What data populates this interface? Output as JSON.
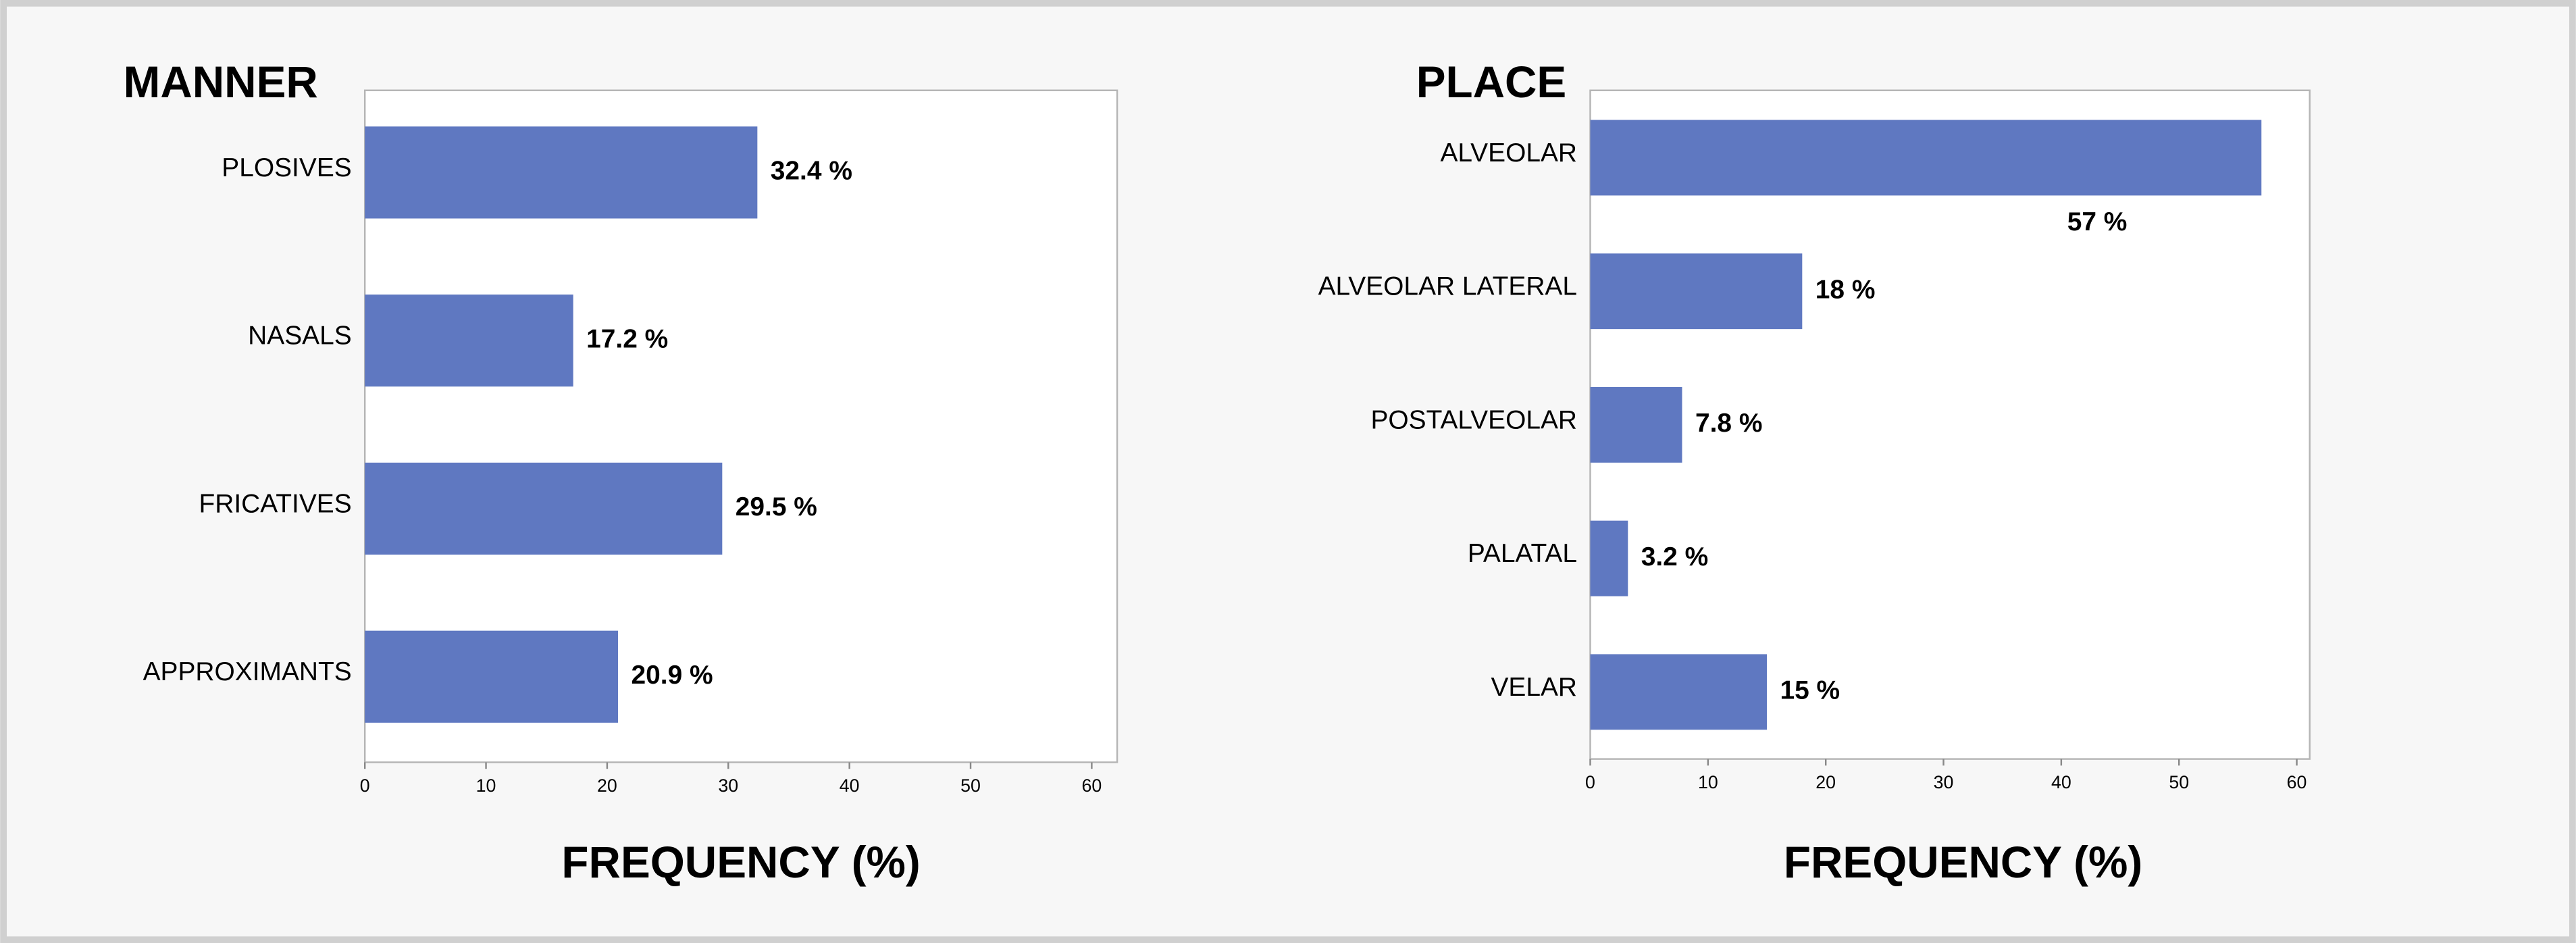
{
  "chart_data": [
    {
      "type": "barh",
      "title": "MANNER",
      "x_label": "FREQUENCY (%)",
      "categories": [
        "PLOSIVES",
        "NASALS",
        "FRICATIVES",
        "APPROXIMANTS"
      ],
      "values": [
        32.4,
        17.2,
        29.5,
        20.9
      ],
      "value_labels": [
        "32.4 %",
        "17.2 %",
        "29.5 %",
        "20.9 %"
      ],
      "color": "#5f78c1",
      "xlim": [
        0,
        62.1
      ],
      "xticks": [
        0,
        10,
        20,
        30,
        40,
        50,
        60
      ]
    },
    {
      "type": "barh",
      "title": "PLACE",
      "x_label": "FREQUENCY (%)",
      "categories": [
        "ALVEOLAR",
        "ALVEOLAR LATERAL",
        "POSTALVEOLAR",
        "PALATAL",
        "VELAR"
      ],
      "values": [
        57,
        18,
        7.8,
        3.2,
        15
      ],
      "value_labels": [
        "57 %",
        "18 %",
        "7.8 %",
        "3.2 %",
        "15 %"
      ],
      "color": "#5f78c1",
      "xlim": [
        0,
        61.1
      ],
      "xticks": [
        0,
        10,
        20,
        30,
        40,
        50,
        60
      ]
    }
  ]
}
